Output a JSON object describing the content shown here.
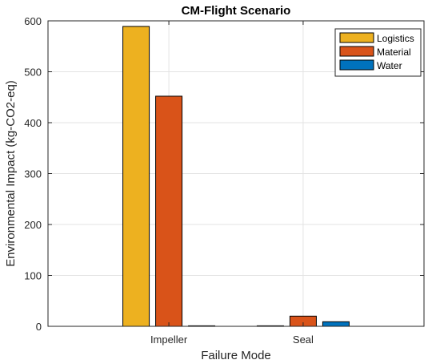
{
  "chart_data": {
    "type": "bar",
    "title": "CM-Flight Scenario",
    "xlabel": "Failure Mode",
    "ylabel": "Environmental Impact (kg-CO2-eq)",
    "categories": [
      "Impeller",
      "Seal"
    ],
    "ylim": [
      0,
      600
    ],
    "yticks": [
      0,
      100,
      200,
      300,
      400,
      500,
      600
    ],
    "grid": true,
    "legend_position": "top-right",
    "series": [
      {
        "name": "Logistics",
        "values": [
          589,
          1
        ],
        "color": "#EDB120"
      },
      {
        "name": "Material",
        "values": [
          452,
          20
        ],
        "color": "#D95319"
      },
      {
        "name": "Water",
        "values": [
          1,
          9
        ],
        "color": "#0072BD"
      }
    ]
  }
}
